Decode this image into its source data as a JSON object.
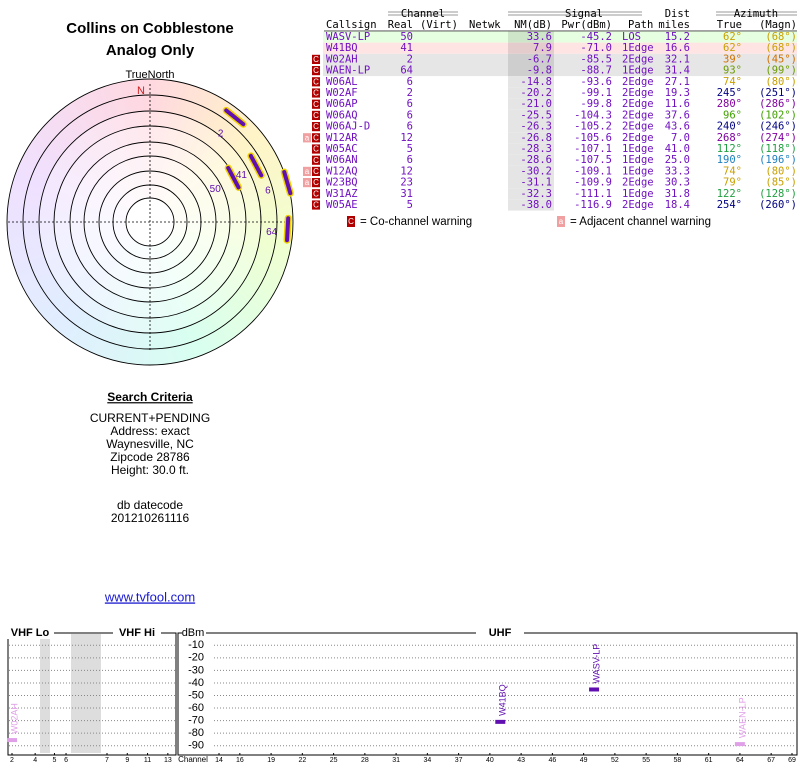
{
  "header": {
    "title": "Collins on Cobblestone",
    "subtitle": "Analog Only"
  },
  "polar": {
    "label": "TrueNorth",
    "north": "N",
    "rows": [
      0,
      1,
      2,
      3,
      4
    ]
  },
  "table": {
    "groups": {
      "channel": "Channel",
      "signal": "Signal",
      "dist": "Dist",
      "azimuth": "Azimuth"
    },
    "columns": {
      "callsign": "Callsign",
      "real": "Real",
      "virt": "(Virt)",
      "netwk": "Netwk",
      "nm": "NM(dB)",
      "pwr": "Pwr(dBm)",
      "path": "Path",
      "dist": "miles",
      "az_true": "True",
      "az_magn": "(Magn)"
    },
    "rows": [
      {
        "warn": [],
        "callsign": "WASV-LP",
        "real": 50,
        "nm": "33.6",
        "pwr": "-45.2",
        "path": "LOS",
        "dist": "15.2",
        "az_true": {
          "value": 62,
          "label": "62°"
        },
        "az_magn": "(68°)",
        "color": "#c8a000",
        "bg": "#e6ffe0"
      },
      {
        "warn": [],
        "callsign": "W41BQ",
        "real": 41,
        "nm": "7.9",
        "pwr": "-71.0",
        "path": "1Edge",
        "dist": "16.6",
        "az_true": {
          "value": 62,
          "label": "62°"
        },
        "az_magn": "(68°)",
        "color": "#c8a000",
        "bg": "#ffe4e4"
      },
      {
        "warn": [
          "C"
        ],
        "callsign": "W02AH",
        "real": 2,
        "nm": "-6.7",
        "pwr": "-85.5",
        "path": "2Edge",
        "dist": "32.1",
        "az_true": {
          "value": 39,
          "label": "39°"
        },
        "az_magn": "(45°)",
        "color": "#d07000",
        "bg": "#e6e6e6"
      },
      {
        "warn": [
          "C"
        ],
        "callsign": "WAEN-LP",
        "real": 64,
        "nm": "-9.8",
        "pwr": "-88.7",
        "path": "1Edge",
        "dist": "31.4",
        "az_true": {
          "value": 93,
          "label": "93°"
        },
        "az_magn": "(99°)",
        "color": "#6a9a00",
        "bg": "#e6e6e6"
      },
      {
        "warn": [
          "C"
        ],
        "callsign": "W06AL",
        "real": 6,
        "nm": "-14.8",
        "pwr": "-93.6",
        "path": "2Edge",
        "dist": "27.1",
        "az_true": {
          "value": 74,
          "label": "74°"
        },
        "az_magn": "(80°)",
        "color": "#c8a000",
        "bg": "#ffffff"
      },
      {
        "warn": [
          "C"
        ],
        "callsign": "W02AF",
        "real": 2,
        "nm": "-20.2",
        "pwr": "-99.1",
        "path": "2Edge",
        "dist": "19.3",
        "az_true": {
          "value": 245,
          "label": "245°"
        },
        "az_magn": "(251°)",
        "color": "#000080",
        "bg": "#ffffff"
      },
      {
        "warn": [
          "C"
        ],
        "callsign": "W06AP",
        "real": 6,
        "nm": "-21.0",
        "pwr": "-99.8",
        "path": "2Edge",
        "dist": "11.6",
        "az_true": {
          "value": 280,
          "label": "280°"
        },
        "az_magn": "(286°)",
        "color": "#8000a0",
        "bg": "#ffffff"
      },
      {
        "warn": [
          "C"
        ],
        "callsign": "W06AQ",
        "real": 6,
        "nm": "-25.5",
        "pwr": "-104.3",
        "path": "2Edge",
        "dist": "37.6",
        "az_true": {
          "value": 96,
          "label": "96°"
        },
        "az_magn": "(102°)",
        "color": "#40a000",
        "bg": "#ffffff"
      },
      {
        "warn": [
          "C"
        ],
        "callsign": "W06AJ-D",
        "real": 6,
        "nm": "-26.3",
        "pwr": "-105.2",
        "path": "2Edge",
        "dist": "43.6",
        "az_true": {
          "value": 240,
          "label": "240°"
        },
        "az_magn": "(246°)",
        "color": "#000080",
        "bg": "#ffffff"
      },
      {
        "warn": [
          "a",
          "C"
        ],
        "callsign": "W12AR",
        "real": 12,
        "nm": "-26.8",
        "pwr": "-105.6",
        "path": "2Edge",
        "dist": "7.0",
        "az_true": {
          "value": 268,
          "label": "268°"
        },
        "az_magn": "(274°)",
        "color": "#8000a0",
        "bg": "#ffffff"
      },
      {
        "warn": [
          "C"
        ],
        "callsign": "W05AC",
        "real": 5,
        "nm": "-28.3",
        "pwr": "-107.1",
        "path": "1Edge",
        "dist": "41.0",
        "az_true": {
          "value": 112,
          "label": "112°"
        },
        "az_magn": "(118°)",
        "color": "#20a040",
        "bg": "#ffffff"
      },
      {
        "warn": [
          "C"
        ],
        "callsign": "W06AN",
        "real": 6,
        "nm": "-28.6",
        "pwr": "-107.5",
        "path": "1Edge",
        "dist": "25.0",
        "az_true": {
          "value": 190,
          "label": "190°"
        },
        "az_magn": "(196°)",
        "color": "#2080c0",
        "bg": "#ffffff"
      },
      {
        "warn": [
          "a",
          "C"
        ],
        "callsign": "W12AQ",
        "real": 12,
        "nm": "-30.2",
        "pwr": "-109.1",
        "path": "1Edge",
        "dist": "33.3",
        "az_true": {
          "value": 74,
          "label": "74°"
        },
        "az_magn": "(80°)",
        "color": "#c8a000",
        "bg": "#ffffff"
      },
      {
        "warn": [
          "a",
          "C"
        ],
        "callsign": "W23BQ",
        "real": 23,
        "nm": "-31.1",
        "pwr": "-109.9",
        "path": "2Edge",
        "dist": "30.3",
        "az_true": {
          "value": 79,
          "label": "79°"
        },
        "az_magn": "(85°)",
        "color": "#c8a000",
        "bg": "#ffffff"
      },
      {
        "warn": [
          "C"
        ],
        "callsign": "W31AZ",
        "real": 31,
        "nm": "-32.3",
        "pwr": "-111.1",
        "path": "1Edge",
        "dist": "31.8",
        "az_true": {
          "value": 122,
          "label": "122°"
        },
        "az_magn": "(128°)",
        "color": "#20a040",
        "bg": "#ffffff"
      },
      {
        "warn": [
          "C"
        ],
        "callsign": "W05AE",
        "real": 5,
        "nm": "-38.0",
        "pwr": "-116.9",
        "path": "2Edge",
        "dist": "18.4",
        "az_true": {
          "value": 254,
          "label": "254°"
        },
        "az_magn": "(260°)",
        "color": "#000080",
        "bg": "#ffffff"
      }
    ]
  },
  "legend": {
    "co_icon": "C",
    "co_text": "= Co-channel warning",
    "adj_icon": "a",
    "adj_text": "= Adjacent channel warning"
  },
  "search": {
    "title": "Search Criteria",
    "lines": [
      "CURRENT+PENDING",
      "Address: exact",
      "Waynesville, NC",
      "Zipcode 28786",
      "Height: 30.0 ft."
    ],
    "datecode_label": "db datecode",
    "datecode": "201210261116"
  },
  "link": "www.tvfool.com",
  "spectrum": {
    "sections": [
      "VHF Lo",
      "VHF Hi",
      "UHF"
    ],
    "y_label": "dBm",
    "x_label": "Channel",
    "ylim": [
      -5,
      -95
    ],
    "yticks": [
      -10,
      -20,
      -30,
      -40,
      -50,
      -60,
      -70,
      -80,
      -90
    ],
    "vhf_ticks": [
      2,
      4,
      5,
      6,
      7,
      9,
      11,
      13
    ],
    "uhf_xlim": [
      14,
      69
    ],
    "uhf_ticks": [
      14,
      16,
      19,
      22,
      25,
      28,
      31,
      34,
      37,
      40,
      43,
      46,
      49,
      52,
      55,
      58,
      61,
      64,
      67,
      69
    ],
    "rows": [
      0,
      1,
      2,
      3
    ]
  }
}
